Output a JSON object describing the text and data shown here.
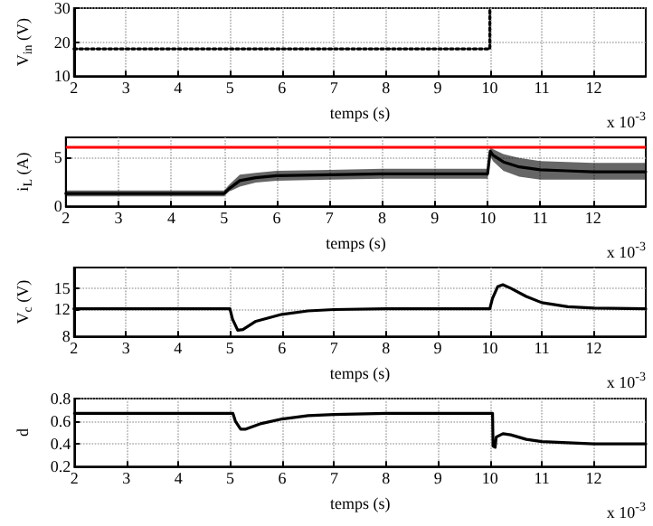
{
  "chart_data": [
    {
      "type": "line",
      "xlabel": "temps (s)",
      "ylabel": "V$_{in}$ (V)",
      "annotations": [
        "x 10$^{-3}$"
      ],
      "xlim": [
        2,
        13
      ],
      "xticks": [
        2,
        3,
        4,
        5,
        6,
        7,
        8,
        9,
        10,
        11,
        12
      ],
      "ylim": [
        10,
        30
      ],
      "yticks": [
        10,
        20,
        30
      ],
      "grid": true,
      "marker": "none",
      "series": [
        {
          "color": "#000000",
          "line_style": "dotted",
          "x": [
            2,
            10,
            10
          ],
          "values": [
            18,
            18,
            30
          ]
        }
      ]
    },
    {
      "type": "line",
      "xlabel": "temps (s)",
      "ylabel": "i$_{L}$ (A)",
      "annotations": [
        "x 10$^{-3}$"
      ],
      "xlim": [
        2,
        13
      ],
      "xticks": [
        2,
        3,
        4,
        5,
        6,
        7,
        8,
        9,
        10,
        11,
        12
      ],
      "ylim": [
        0,
        7
      ],
      "yticks": [
        0,
        5
      ],
      "grid": true,
      "marker": "none",
      "ref_lines": [
        {
          "axis": "y",
          "value": 6,
          "color": "#ff0000"
        }
      ],
      "series": [
        {
          "color": "#000000",
          "line_style": "solid",
          "x": [
            2,
            5,
            5.1,
            5.3,
            5.6,
            6,
            7,
            8,
            9,
            10,
            10.05,
            10.1,
            10.3,
            10.6,
            11,
            11.5,
            12,
            13
          ],
          "values": [
            1.3,
            1.3,
            1.8,
            2.6,
            2.9,
            3.1,
            3.2,
            3.3,
            3.3,
            3.3,
            5.6,
            5.2,
            4.5,
            4.0,
            3.7,
            3.6,
            3.5,
            3.5
          ],
          "lower": [
            1.0,
            1.0,
            1.5,
            2.0,
            2.4,
            2.6,
            2.7,
            2.8,
            2.8,
            2.8,
            5.2,
            4.6,
            3.6,
            3.0,
            2.7,
            2.7,
            2.7,
            2.7
          ],
          "upper": [
            1.6,
            1.6,
            2.2,
            3.2,
            3.4,
            3.6,
            3.7,
            3.8,
            3.8,
            3.8,
            6.1,
            5.8,
            5.3,
            4.9,
            4.6,
            4.5,
            4.4,
            4.4
          ]
        }
      ]
    },
    {
      "type": "line",
      "xlabel": "temps (s)",
      "ylabel": "V$_{c}$ (V)",
      "annotations": [
        "x 10$^{-3}$"
      ],
      "xlim": [
        2,
        13
      ],
      "xticks": [
        2,
        3,
        4,
        5,
        6,
        7,
        8,
        9,
        10,
        11,
        12
      ],
      "ylim": [
        8,
        18
      ],
      "yticks": [
        8,
        12,
        15
      ],
      "grid": true,
      "marker": "none",
      "series": [
        {
          "color": "#000000",
          "line_style": "solid",
          "x": [
            2,
            5,
            5.05,
            5.15,
            5.25,
            5.5,
            6,
            6.5,
            7,
            8,
            10,
            10.05,
            10.15,
            10.25,
            10.4,
            10.7,
            11,
            11.5,
            12,
            13
          ],
          "values": [
            12,
            12,
            10.5,
            8.9,
            9.0,
            10.2,
            11.2,
            11.7,
            11.9,
            12,
            12,
            13.5,
            15.2,
            15.5,
            15.0,
            13.8,
            12.9,
            12.3,
            12.1,
            12
          ]
        }
      ]
    },
    {
      "type": "line",
      "xlabel": "temps (s)",
      "ylabel": "d",
      "annotations": [
        "x 10$^{-3}$"
      ],
      "xlim": [
        2,
        13
      ],
      "xticks": [
        2,
        3,
        4,
        5,
        6,
        7,
        8,
        9,
        10,
        11,
        12
      ],
      "ylim": [
        0.2,
        0.8
      ],
      "yticks": [
        0.2,
        0.4,
        0.6,
        0.8
      ],
      "grid": true,
      "marker": "none",
      "series": [
        {
          "color": "#000000",
          "line_style": "solid",
          "x": [
            2,
            5.05,
            5.1,
            5.2,
            5.3,
            5.6,
            6,
            6.5,
            7,
            8,
            10.05,
            10.06,
            10.1,
            10.12,
            10.25,
            10.4,
            10.7,
            11,
            11.5,
            12,
            13
          ],
          "values": [
            0.67,
            0.67,
            0.6,
            0.53,
            0.53,
            0.58,
            0.62,
            0.65,
            0.66,
            0.67,
            0.67,
            0.38,
            0.37,
            0.46,
            0.49,
            0.48,
            0.44,
            0.42,
            0.41,
            0.4,
            0.4
          ]
        }
      ]
    }
  ]
}
